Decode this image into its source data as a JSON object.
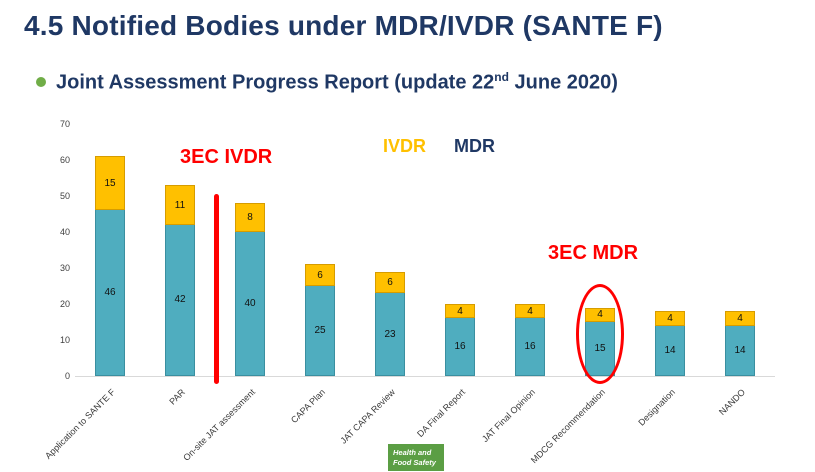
{
  "page": {
    "title": "4.5 Notified Bodies under MDR/IVDR (SANTE F)"
  },
  "subtitle": {
    "pre": "Joint Assessment Progress Report (update 22",
    "sup": "nd",
    "post": " June 2020)"
  },
  "legend": {
    "ivdr_label": "IVDR",
    "mdr_label": "MDR"
  },
  "annotations": {
    "ivdr_label": "3EC IVDR",
    "mdr_label": "3EC MDR"
  },
  "badge": {
    "line1": "Health and",
    "line2": "Food Safety"
  },
  "colors": {
    "title_navy": "#1F3864",
    "bullet_green": "#70AD47",
    "bar_teal": "#4FADBF",
    "bar_teal_border": "#3A8FA0",
    "bar_yellow": "#FFC000",
    "bar_yellow_border": "#D69C00",
    "annotation_red": "#FF0000",
    "badge_green": "#5B9E44"
  },
  "chart_data": {
    "type": "bar",
    "stacked": true,
    "title": "Joint Assessment Progress Report (update 22nd June 2020)",
    "categories": [
      "Application to SANTE F",
      "PAR",
      "On-site JAT assessment",
      "CAPA Plan",
      "JAT CAPA Review",
      "DA Final Report",
      "JAT Final Opinion",
      "MDCG Recommendation",
      "Designation",
      "NANDO"
    ],
    "series": [
      {
        "name": "MDR",
        "color": "#4FADBF",
        "values": [
          46,
          42,
          40,
          25,
          23,
          16,
          16,
          15,
          14,
          14
        ]
      },
      {
        "name": "IVDR",
        "color": "#FFC000",
        "values": [
          15,
          11,
          8,
          6,
          6,
          4,
          4,
          4,
          4,
          4
        ]
      }
    ],
    "xlabel": "",
    "ylabel": "",
    "ylim": [
      0,
      70
    ],
    "yticks": [
      0,
      10,
      20,
      30,
      40,
      50,
      60,
      70
    ],
    "grid": false,
    "legend_position": "top-center",
    "data_labels": true
  }
}
